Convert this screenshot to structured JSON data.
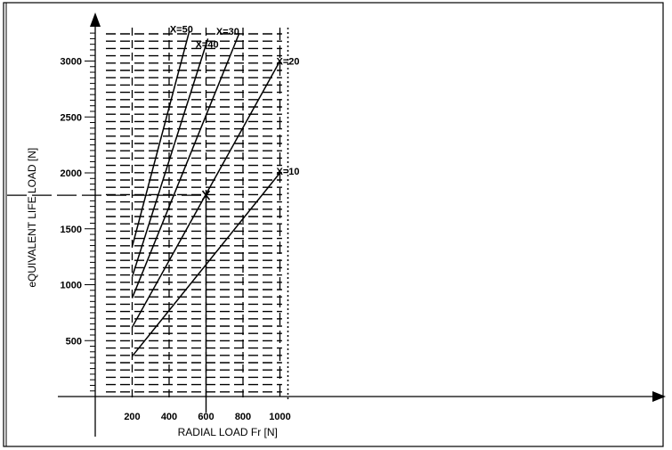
{
  "chart_data": {
    "type": "line",
    "title": "",
    "xlabel": "RADIAL LOAD Fr [N]",
    "ylabel": "eQUIVALENT LIFE LOAD [N]",
    "xlim": [
      0,
      1050
    ],
    "ylim": [
      -20,
      3300
    ],
    "x_ticks": [
      200,
      400,
      600,
      800,
      1000
    ],
    "x_tick_labels": [
      "200",
      "400",
      "600",
      "800",
      "1000"
    ],
    "y_ticks": [
      500,
      1000,
      1500,
      2000,
      2500,
      3000
    ],
    "y_tick_labels": [
      "500",
      "1000",
      "1500",
      "2000",
      "2500",
      "3000"
    ],
    "grid": true,
    "legend": "inline labels at line ends",
    "series": [
      {
        "name": "X=10",
        "x": [
          200,
          1000
        ],
        "y": [
          360,
          2000
        ]
      },
      {
        "name": "X=20",
        "x": [
          200,
          1000
        ],
        "y": [
          620,
          3000
        ]
      },
      {
        "name": "X=30",
        "x": [
          200,
          780
        ],
        "y": [
          880,
          3250
        ]
      },
      {
        "name": "X=40",
        "x": [
          200,
          610
        ],
        "y": [
          1070,
          3200
        ]
      },
      {
        "name": "X=50",
        "x": [
          200,
          510
        ],
        "y": [
          1340,
          3270
        ]
      }
    ],
    "annotation": {
      "x": 600,
      "y": 1800,
      "marker": "x",
      "crosshair": true
    },
    "colors": {
      "line": "#000000",
      "background": "#ffffff"
    }
  }
}
